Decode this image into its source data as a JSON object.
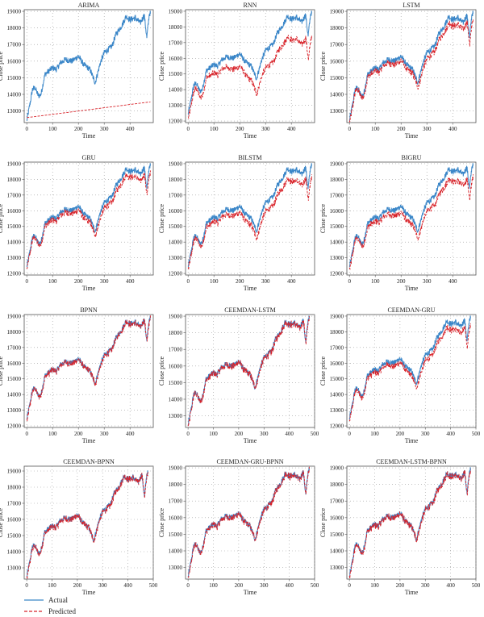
{
  "figure": {
    "legend": {
      "actual_label": "Actual",
      "predicted_label": "Predicted"
    },
    "colors": {
      "actual": "#3a86c8",
      "predicted": "#d8232a"
    }
  },
  "chart_data": [
    {
      "type": "line",
      "title": "ARIMA",
      "xlabel": "Time",
      "ylabel": "Close price",
      "xlim": [
        -10,
        490
      ],
      "ylim": [
        12300,
        19100
      ],
      "xticks": [
        "0",
        "100",
        "200",
        "300",
        "400"
      ],
      "yticks": [
        "13000",
        "14000",
        "15000",
        "16000",
        "17000",
        "18000",
        "19000"
      ],
      "actual_style": "typical",
      "predicted_style": "arima"
    },
    {
      "type": "line",
      "title": "RNN",
      "xlabel": "Time",
      "ylabel": "Close price",
      "xlim": [
        -10,
        490
      ],
      "ylim": [
        11900,
        19100
      ],
      "xticks": [
        "0",
        "100",
        "200",
        "300",
        "400"
      ],
      "yticks": [
        "12000",
        "13000",
        "14000",
        "15000",
        "16000",
        "17000",
        "18000",
        "19000"
      ],
      "actual_style": "typical",
      "predicted_style": "rnn"
    },
    {
      "type": "line",
      "title": "LSTM",
      "xlabel": "Time",
      "ylabel": "Close price",
      "xlim": [
        -10,
        490
      ],
      "ylim": [
        12300,
        19100
      ],
      "xticks": [
        "0",
        "100",
        "200",
        "300",
        "400"
      ],
      "yticks": [
        "13000",
        "14000",
        "15000",
        "16000",
        "17000",
        "18000",
        "19000"
      ],
      "actual_style": "typical",
      "predicted_style": "slight_low"
    },
    {
      "type": "line",
      "title": "GRU",
      "xlabel": "Time",
      "ylabel": "Close price",
      "xlim": [
        -10,
        490
      ],
      "ylim": [
        11900,
        19100
      ],
      "xticks": [
        "0",
        "100",
        "200",
        "300",
        "400"
      ],
      "yticks": [
        "12000",
        "13000",
        "14000",
        "15000",
        "16000",
        "17000",
        "18000",
        "19000"
      ],
      "actual_style": "typical",
      "predicted_style": "slight_low"
    },
    {
      "type": "line",
      "title": "BILSTM",
      "xlabel": "Time",
      "ylabel": "Close price",
      "xlim": [
        -10,
        490
      ],
      "ylim": [
        11900,
        19100
      ],
      "xticks": [
        "0",
        "100",
        "200",
        "300",
        "400"
      ],
      "yticks": [
        "12000",
        "13000",
        "14000",
        "15000",
        "16000",
        "17000",
        "18000",
        "19000"
      ],
      "actual_style": "typical",
      "predicted_style": "low"
    },
    {
      "type": "line",
      "title": "BIGRU",
      "xlabel": "Time",
      "ylabel": "Close price",
      "xlim": [
        -10,
        490
      ],
      "ylim": [
        11900,
        19100
      ],
      "xticks": [
        "0",
        "100",
        "200",
        "300",
        "400"
      ],
      "yticks": [
        "12000",
        "13000",
        "14000",
        "15000",
        "16000",
        "17000",
        "18000",
        "19000"
      ],
      "actual_style": "typical",
      "predicted_style": "low"
    },
    {
      "type": "line",
      "title": "BPNN",
      "xlabel": "Time",
      "ylabel": "Close price",
      "xlim": [
        -10,
        490
      ],
      "ylim": [
        11900,
        19100
      ],
      "xticks": [
        "0",
        "100",
        "200",
        "300",
        "400"
      ],
      "yticks": [
        "12000",
        "13000",
        "14000",
        "15000",
        "16000",
        "17000",
        "18000",
        "19000"
      ],
      "actual_style": "typical",
      "predicted_style": "close"
    },
    {
      "type": "line",
      "title": "CEEMDAN-LSTM",
      "xlabel": "Time",
      "ylabel": "Close price",
      "xlim": [
        -10,
        500
      ],
      "ylim": [
        12300,
        19100
      ],
      "xticks": [
        "0",
        "100",
        "200",
        "300",
        "400",
        "500"
      ],
      "yticks": [
        "13000",
        "14000",
        "15000",
        "16000",
        "17000",
        "18000",
        "19000"
      ],
      "actual_style": "typical",
      "predicted_style": "close"
    },
    {
      "type": "line",
      "title": "CEEMDAN-GRU",
      "xlabel": "Time",
      "ylabel": "Close price",
      "xlim": [
        -10,
        500
      ],
      "ylim": [
        11900,
        19100
      ],
      "xticks": [
        "0",
        "100",
        "200",
        "300",
        "400",
        "500"
      ],
      "yticks": [
        "12000",
        "13000",
        "14000",
        "15000",
        "16000",
        "17000",
        "18000",
        "19000"
      ],
      "actual_style": "typical",
      "predicted_style": "slight_low"
    },
    {
      "type": "line",
      "title": "CEEMDAN-BPNN",
      "xlabel": "Time",
      "ylabel": "Close price",
      "xlim": [
        -10,
        500
      ],
      "ylim": [
        12300,
        19300
      ],
      "xticks": [
        "0",
        "100",
        "200",
        "300",
        "400",
        "500"
      ],
      "yticks": [
        "13000",
        "14000",
        "15000",
        "16000",
        "17000",
        "18000",
        "19000"
      ],
      "actual_style": "typical",
      "predicted_style": "close"
    },
    {
      "type": "line",
      "title": "CEEMDAN-GRU-BPNN",
      "xlabel": "Time",
      "ylabel": "Close price",
      "xlim": [
        -10,
        500
      ],
      "ylim": [
        12300,
        19100
      ],
      "xticks": [
        "0",
        "100",
        "200",
        "300",
        "400",
        "500"
      ],
      "yticks": [
        "13000",
        "14000",
        "15000",
        "16000",
        "17000",
        "18000",
        "19000"
      ],
      "actual_style": "typical",
      "predicted_style": "close"
    },
    {
      "type": "line",
      "title": "CEEMDAN-LSTM-BPNN",
      "xlabel": "Time",
      "ylabel": "Close price",
      "xlim": [
        -10,
        500
      ],
      "ylim": [
        12300,
        19100
      ],
      "xticks": [
        "0",
        "100",
        "200",
        "300",
        "400",
        "500"
      ],
      "yticks": [
        "13000",
        "14000",
        "15000",
        "16000",
        "17000",
        "18000",
        "19000"
      ],
      "actual_style": "typical",
      "predicted_style": "close"
    }
  ]
}
